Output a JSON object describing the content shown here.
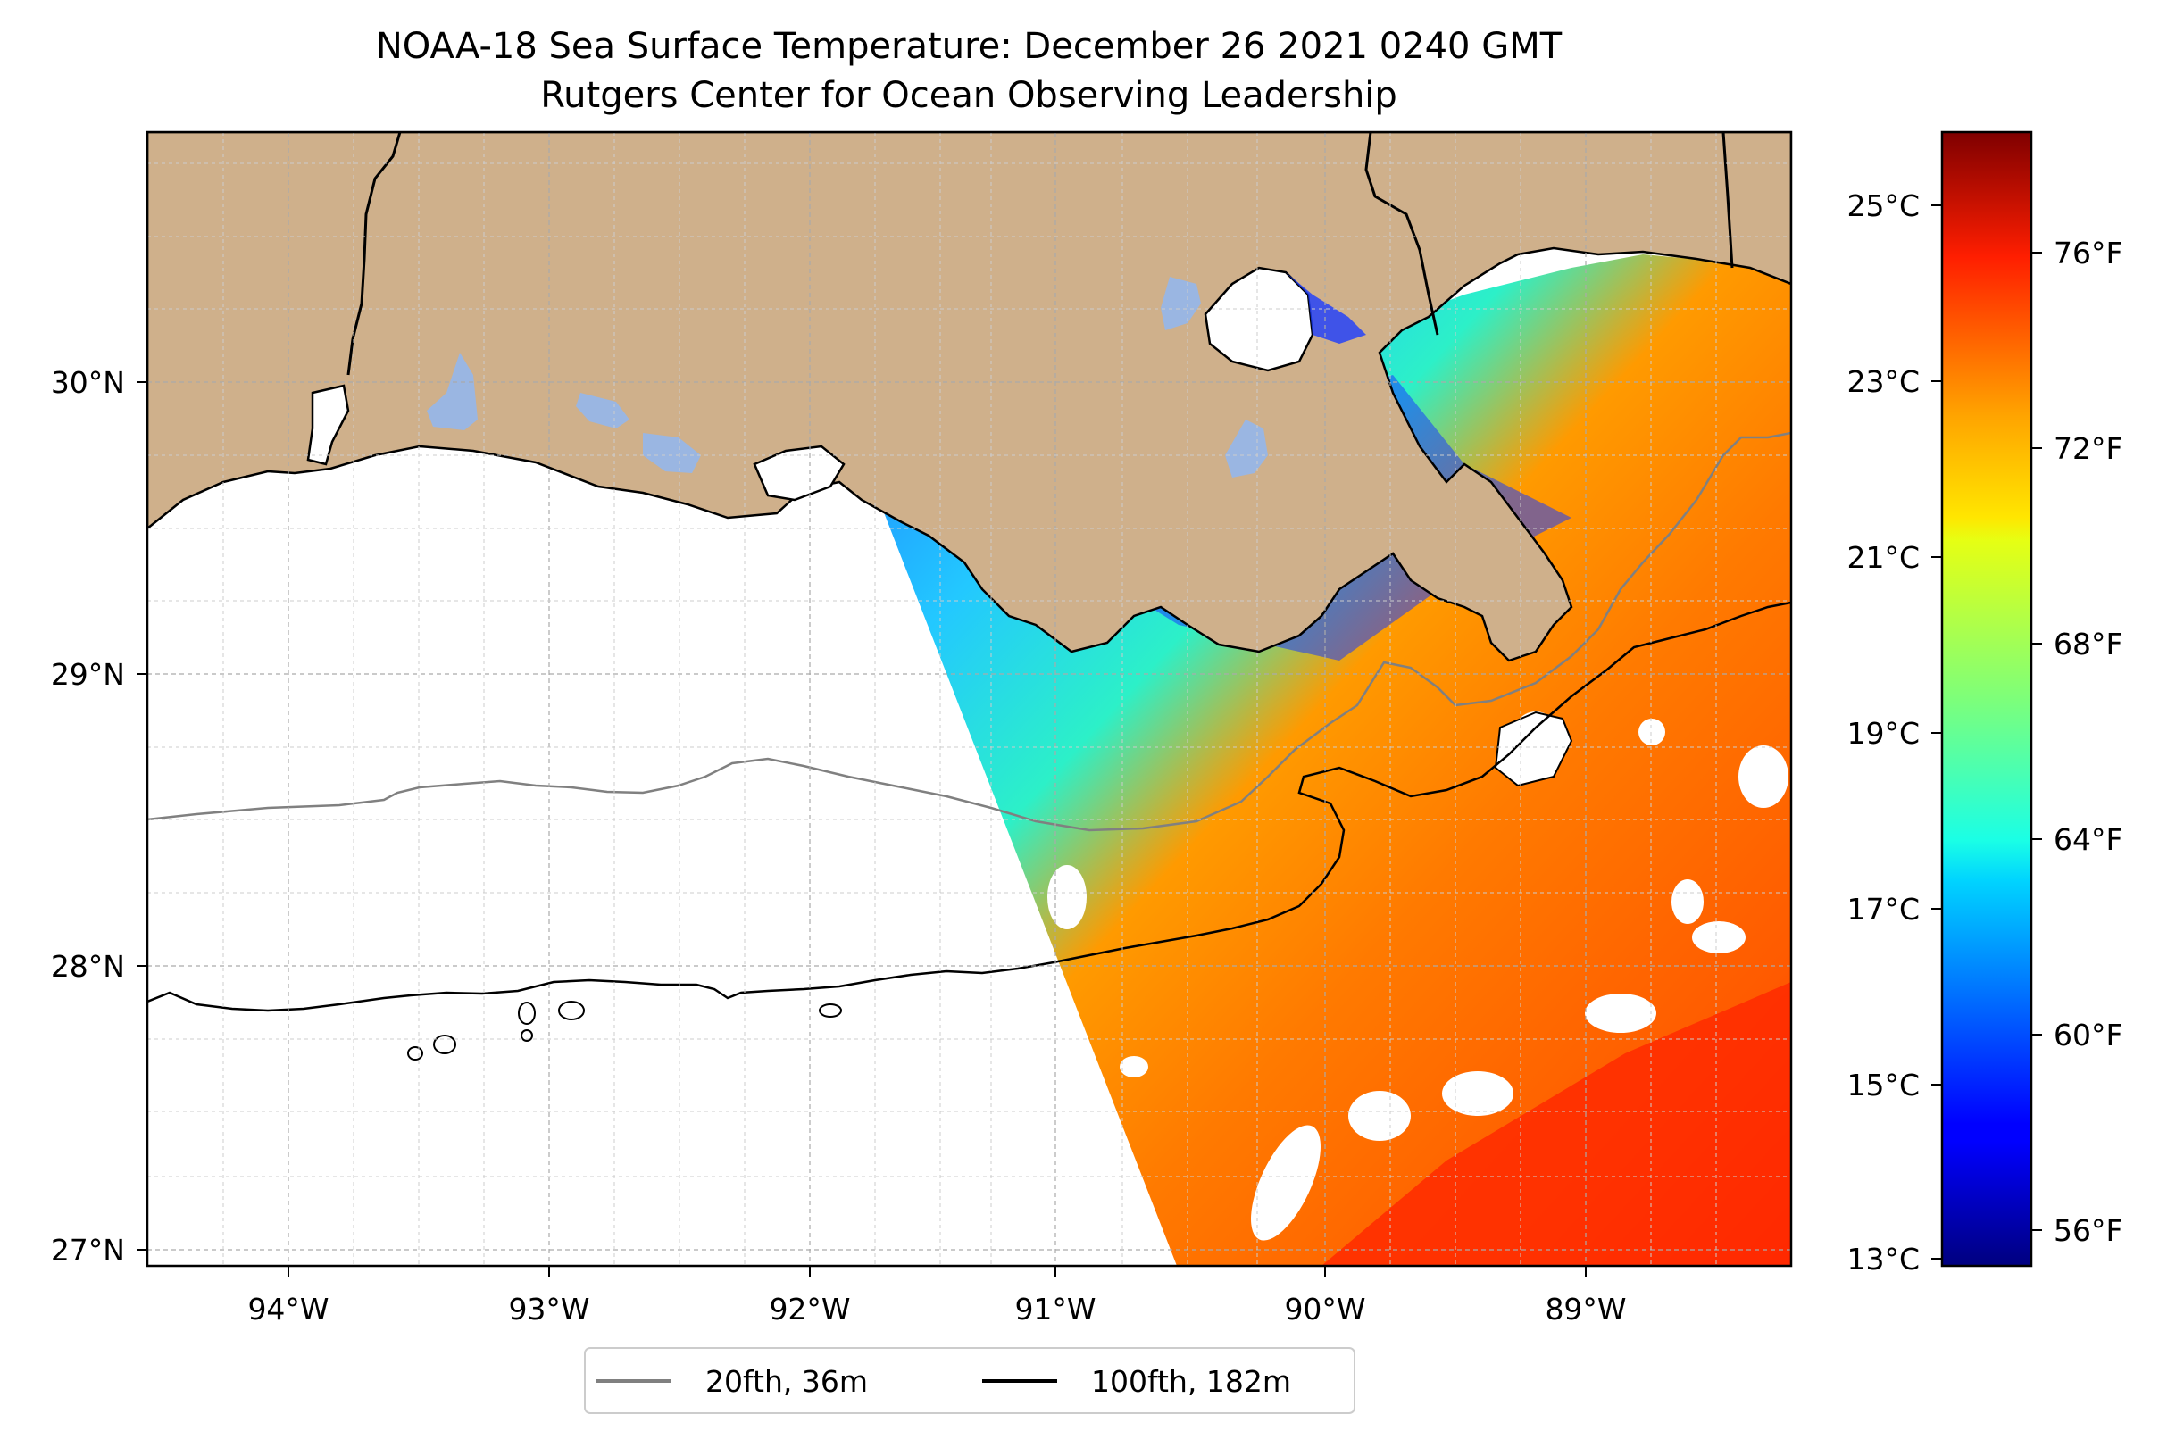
{
  "title_line1": "NOAA-18 Sea Surface Temperature: December 26 2021 0240 GMT",
  "title_line2": "Rutgers Center for Ocean Observing Leadership",
  "lon_ticks": [
    "94°W",
    "93°W",
    "92°W",
    "91°W",
    "90°W",
    "89°W"
  ],
  "lat_ticks": [
    "30°N",
    "29°N",
    "28°N",
    "27°N"
  ],
  "colorbar": {
    "celsius_ticks": [
      "25°C",
      "23°C",
      "21°C",
      "19°C",
      "17°C",
      "15°C",
      "13°C"
    ],
    "fahrenheit_ticks": [
      "76°F",
      "72°F",
      "68°F",
      "64°F",
      "60°F",
      "56°F"
    ],
    "range_c": [
      12.9,
      25.8
    ],
    "colormap": "jet"
  },
  "legend": {
    "items": [
      {
        "label": "20fth, 36m",
        "color": "#808080"
      },
      {
        "label": "100fth, 182m",
        "color": "#000000"
      }
    ]
  },
  "map": {
    "lon_range": [
      -94.55,
      -88.25
    ],
    "lat_range": [
      26.95,
      30.85
    ],
    "land_color": "#cfb08b",
    "lake_color": "#9ab6e2",
    "no_data_color": "#ffffff"
  }
}
